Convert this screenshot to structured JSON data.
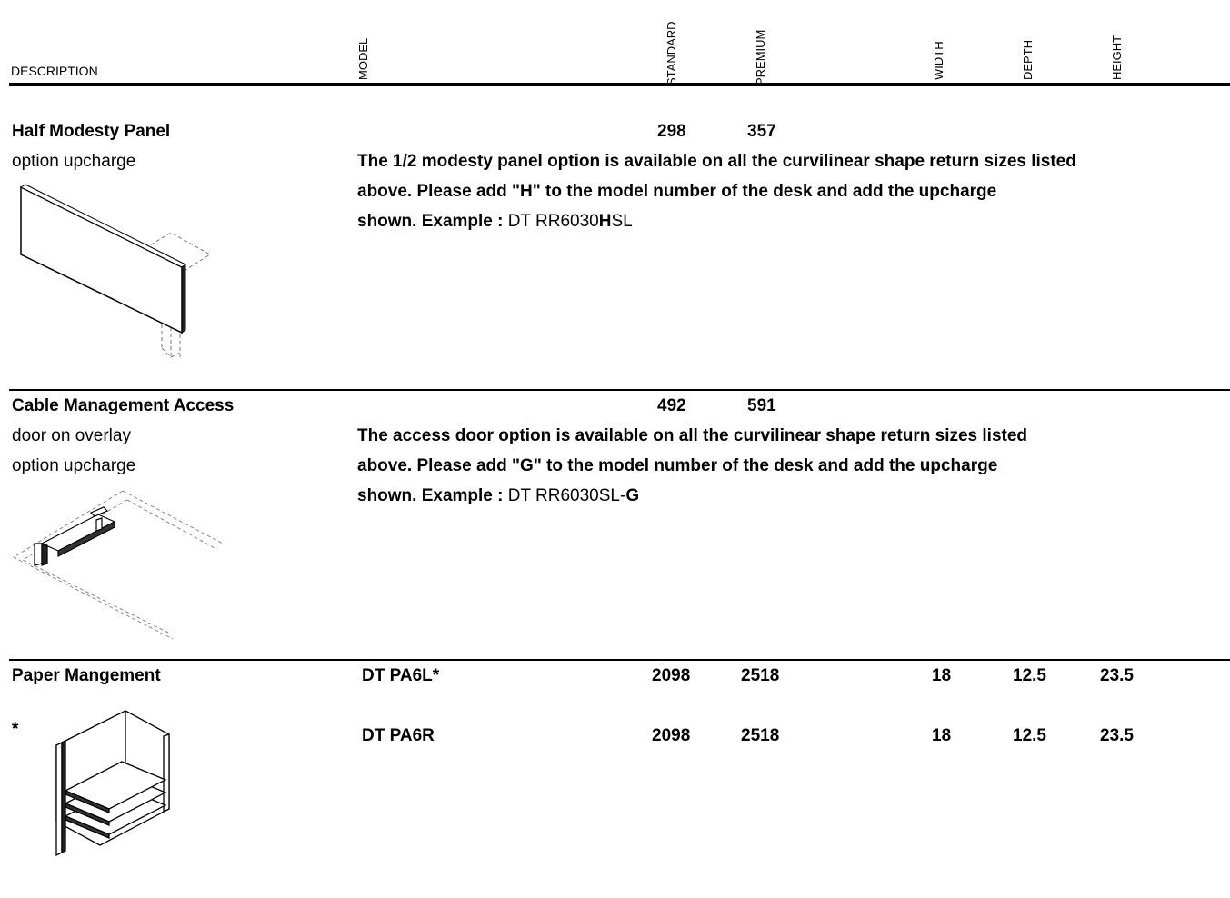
{
  "header": {
    "description": "DESCRIPTION",
    "model": "MODEL",
    "standard": "STANDARD",
    "premium": "PREMIUM",
    "width": "WIDTH",
    "depth": "DEPTH",
    "height": "HEIGHT"
  },
  "sections": [
    {
      "title": "Half Modesty Panel",
      "subtitles": [
        "option upcharge"
      ],
      "standard": "298",
      "premium": "357",
      "note": {
        "line1": "The 1/2 modesty panel option is available on all the curvilinear shape return sizes listed",
        "line2": "above.  Please add \"H\" to the model number of the desk and add the upcharge",
        "line3_bold": "shown.  Example : ",
        "example_a": "DT RR6030",
        "example_b": "H",
        "example_c": "SL"
      },
      "illustration": "half-modesty-panel-drawing"
    },
    {
      "title": "Cable Management Access",
      "subtitles": [
        "door on overlay",
        "option upcharge"
      ],
      "standard": "492",
      "premium": "591",
      "note": {
        "line1": "The access door option is available on all the curvilinear shape return sizes listed",
        "line2": "above.  Please add \"G\" to the model number of the desk and add the upcharge",
        "line3_bold": "shown.  Example : ",
        "example_a": "DT RR6030SL-",
        "example_b": "G"
      },
      "illustration": "cable-access-door-drawing"
    },
    {
      "title": "Paper Mangement",
      "asterisk": "*",
      "rows": [
        {
          "model": "DT  PA6L*",
          "standard": "2098",
          "premium": "2518",
          "width": "18",
          "depth": "12.5",
          "height": "23.5"
        },
        {
          "model": "DT  PA6R",
          "standard": "2098",
          "premium": "2518",
          "width": "18",
          "depth": "12.5",
          "height": "23.5"
        }
      ],
      "illustration": "paper-management-drawing"
    }
  ]
}
